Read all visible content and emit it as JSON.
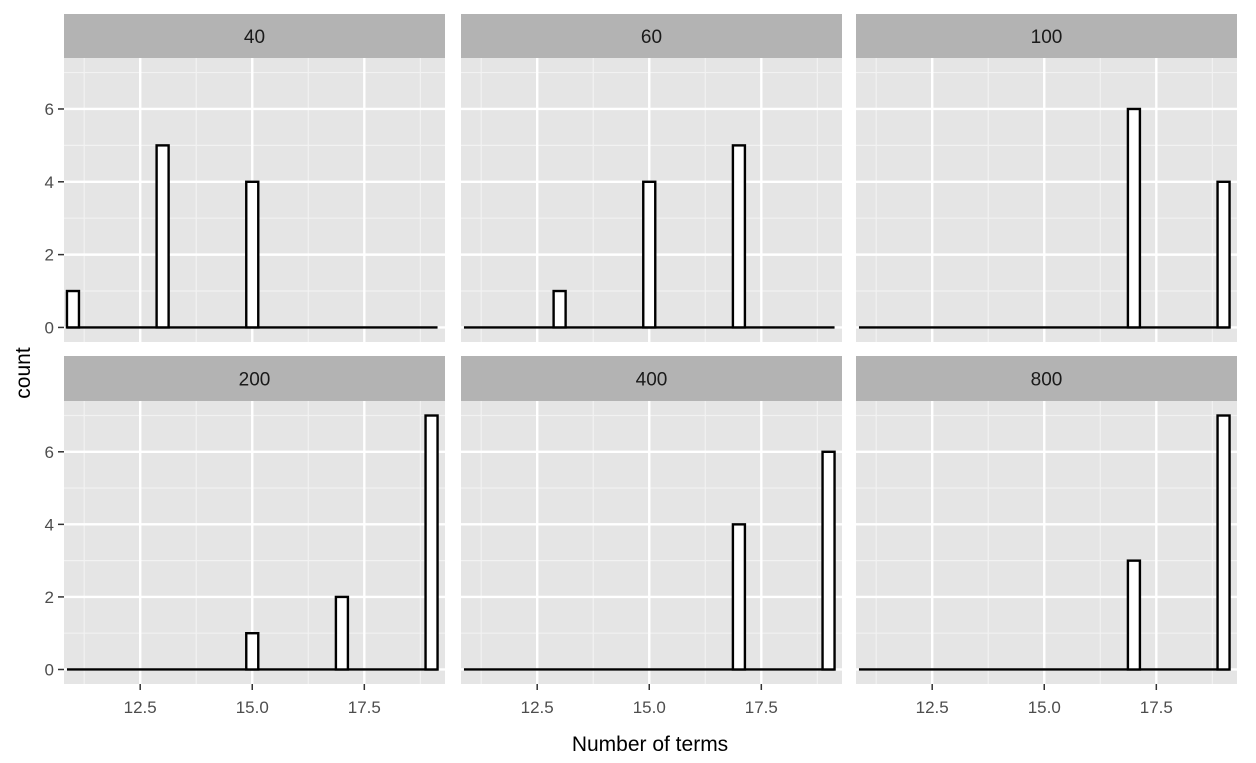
{
  "chart_data": {
    "type": "bar",
    "subtype": "faceted-histogram",
    "xlabel": "Number of terms",
    "ylabel": "count",
    "xlim": [
      10.8,
      19.3
    ],
    "ylim": [
      -0.4,
      7.4
    ],
    "x_ticks": [
      12.5,
      15.0,
      17.5
    ],
    "x_tick_labels": [
      "12.5",
      "15.0",
      "17.5"
    ],
    "y_ticks": [
      0,
      2,
      4,
      6
    ],
    "y_tick_labels": [
      "0",
      "2",
      "4",
      "6"
    ],
    "bin_centers": [
      11,
      13,
      15,
      17,
      19
    ],
    "bar_fill": "#ffffff",
    "bar_outline": "#000000",
    "panel_background": "#e5e5e5",
    "strip_background": "#b3b3b3",
    "grid": true,
    "facets": [
      {
        "label": "40",
        "values": [
          1,
          5,
          4,
          0,
          0
        ]
      },
      {
        "label": "60",
        "values": [
          0,
          1,
          4,
          5,
          0
        ]
      },
      {
        "label": "100",
        "values": [
          0,
          0,
          0,
          6,
          4
        ]
      },
      {
        "label": "200",
        "values": [
          0,
          0,
          1,
          2,
          7
        ]
      },
      {
        "label": "400",
        "values": [
          0,
          0,
          0,
          4,
          6
        ]
      },
      {
        "label": "800",
        "values": [
          0,
          0,
          0,
          3,
          7
        ]
      }
    ]
  }
}
